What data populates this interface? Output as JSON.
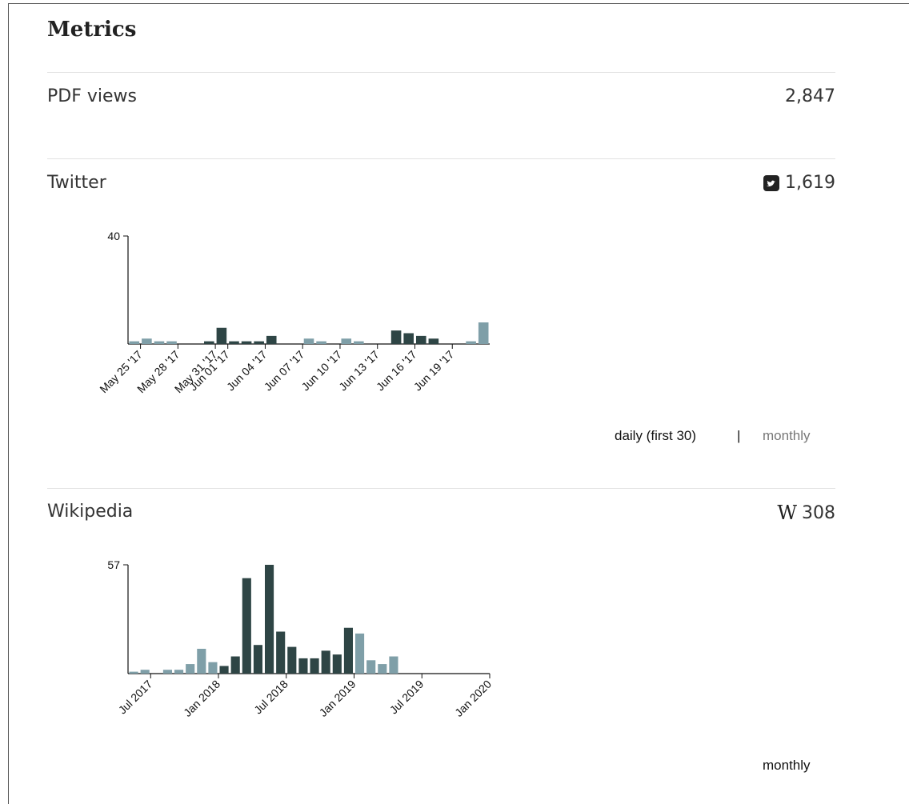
{
  "title": "Metrics",
  "pdf": {
    "label": "PDF views",
    "value": "2,847"
  },
  "twitter": {
    "label": "Twitter",
    "value": "1,619",
    "chart": {
      "type": "bar",
      "ylim": [
        0,
        40
      ],
      "yticks": [
        40
      ],
      "categories": [
        null,
        "May 25 '17",
        null,
        null,
        "May 28 '17",
        null,
        null,
        "May 31 '17",
        "Jun 01 '17",
        null,
        null,
        "Jun 04 '17",
        null,
        null,
        "Jun 07 '17",
        null,
        null,
        "Jun 10 '17",
        null,
        null,
        "Jun 13 '17",
        null,
        null,
        "Jun 16 '17",
        null,
        null,
        "Jun 19 '17",
        null,
        null,
        null
      ],
      "values": [
        1,
        2,
        1,
        1,
        0,
        0,
        1,
        6,
        1,
        1,
        1,
        3,
        0,
        0,
        2,
        1,
        0,
        2,
        1,
        0,
        0,
        5,
        4,
        3,
        2,
        0,
        0,
        1,
        8,
        null
      ],
      "colors": [
        "#7f9fa8",
        "#7f9fa8",
        "#7f9fa8",
        "#7f9fa8",
        "#2e4545",
        "#2e4545",
        "#2e4545",
        "#2e4545",
        "#2e4545",
        "#2e4545",
        "#2e4545",
        "#2e4545",
        "#2e4545",
        "#2e4545",
        "#7f9fa8",
        "#7f9fa8",
        "#7f9fa8",
        "#7f9fa8",
        "#7f9fa8",
        "#2e4545",
        "#2e4545",
        "#2e4545",
        "#2e4545",
        "#2e4545",
        "#2e4545",
        "#7f9fa8",
        "#7f9fa8",
        "#7f9fa8",
        "#7f9fa8",
        "#7f9fa8"
      ]
    },
    "toggles": [
      "daily (first 30)",
      "|",
      "monthly"
    ]
  },
  "wikipedia": {
    "label": "Wikipedia",
    "icon": "W",
    "value": "308",
    "chart": {
      "type": "bar",
      "ylim": [
        0,
        57
      ],
      "yticks": [
        57
      ],
      "categories": [
        null,
        null,
        "Jul 2017",
        null,
        null,
        null,
        null,
        null,
        "Jan 2018",
        null,
        null,
        null,
        null,
        null,
        "Jul 2018",
        null,
        null,
        null,
        null,
        null,
        "Jan 2019",
        null,
        null,
        null,
        null,
        null,
        "Jul 2019",
        null,
        null,
        null,
        null,
        null,
        "Jan 2020"
      ],
      "values": [
        1,
        2,
        0,
        2,
        2,
        5,
        13,
        6,
        4,
        9,
        50,
        15,
        57,
        22,
        14,
        8,
        8,
        12,
        10,
        24,
        21,
        7,
        5,
        9,
        0,
        0,
        0,
        0,
        0,
        0,
        0,
        0,
        null
      ],
      "colors": [
        "#7f9fa8",
        "#7f9fa8",
        "#7f9fa8",
        "#7f9fa8",
        "#7f9fa8",
        "#7f9fa8",
        "#7f9fa8",
        "#7f9fa8",
        "#2e4545",
        "#2e4545",
        "#2e4545",
        "#2e4545",
        "#2e4545",
        "#2e4545",
        "#2e4545",
        "#2e4545",
        "#2e4545",
        "#2e4545",
        "#2e4545",
        "#2e4545",
        "#7f9fa8",
        "#7f9fa8",
        "#7f9fa8",
        "#7f9fa8",
        "#7f9fa8",
        "#7f9fa8",
        "#7f9fa8",
        "#7f9fa8",
        "#7f9fa8",
        "#7f9fa8",
        "#7f9fa8",
        "#7f9fa8",
        "#7f9fa8"
      ]
    },
    "toggles": [
      "monthly"
    ]
  }
}
